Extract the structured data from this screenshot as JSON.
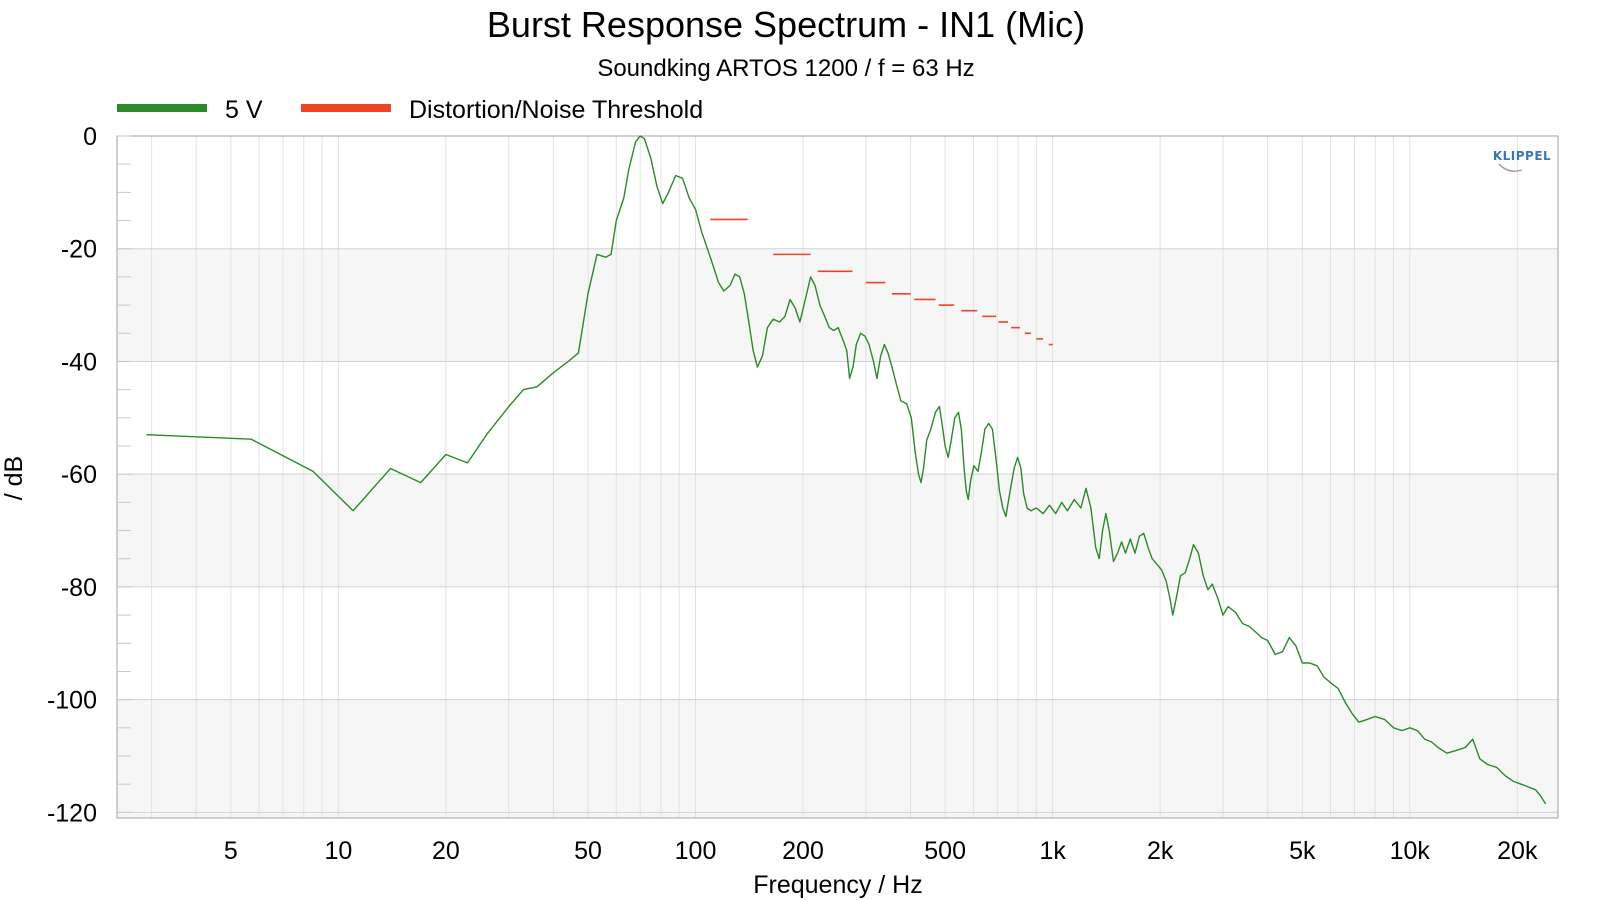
{
  "chart_data": {
    "type": "line",
    "title": "Burst Response Spectrum - IN1 (Mic)",
    "subtitle": "Soundking ARTOS 1200 / f = 63 Hz",
    "xlabel": "Frequency / Hz",
    "ylabel": "/ dB",
    "x_scale": "log",
    "xlim": [
      2.4,
      26000
    ],
    "ylim": [
      -121,
      0
    ],
    "x_tick_values": [
      5,
      10,
      20,
      50,
      100,
      200,
      500,
      1000,
      2000,
      5000,
      10000,
      20000
    ],
    "x_tick_labels": [
      "5",
      "10",
      "20",
      "50",
      "100",
      "200",
      "500",
      "1k",
      "2k",
      "5k",
      "10k",
      "20k"
    ],
    "y_tick_values": [
      0,
      -20,
      -40,
      -60,
      -80,
      -100,
      -120
    ],
    "y_tick_labels": [
      "0",
      "-20",
      "-40",
      "-60",
      "-80",
      "-100",
      "-120"
    ],
    "grid": true,
    "legend_position": "top-left",
    "logo": "KLIPPEL",
    "series": [
      {
        "name": "5 V",
        "color": "#2a8a2a",
        "points": [
          [
            2.9,
            -53
          ],
          [
            5.7,
            -53.8
          ],
          [
            8.5,
            -59.5
          ],
          [
            11,
            -66.5
          ],
          [
            14,
            -59
          ],
          [
            17,
            -61.5
          ],
          [
            20,
            -56.5
          ],
          [
            23,
            -58
          ],
          [
            26,
            -53
          ],
          [
            30,
            -48
          ],
          [
            33,
            -45
          ],
          [
            36,
            -44.5
          ],
          [
            40,
            -42
          ],
          [
            44,
            -40
          ],
          [
            47,
            -38.5
          ],
          [
            50,
            -28
          ],
          [
            53,
            -21
          ],
          [
            56,
            -21.5
          ],
          [
            58,
            -21
          ],
          [
            60,
            -15
          ],
          [
            63,
            -11
          ],
          [
            65,
            -6
          ],
          [
            68,
            -1
          ],
          [
            70,
            0
          ],
          [
            72,
            -0.5
          ],
          [
            75,
            -4
          ],
          [
            78,
            -9
          ],
          [
            81,
            -12
          ],
          [
            84,
            -10
          ],
          [
            88,
            -7
          ],
          [
            92,
            -7.5
          ],
          [
            96,
            -11
          ],
          [
            100,
            -13
          ],
          [
            104,
            -17
          ],
          [
            108,
            -20
          ],
          [
            112,
            -23
          ],
          [
            116,
            -26
          ],
          [
            120,
            -27.5
          ],
          [
            125,
            -26.5
          ],
          [
            129,
            -24.5
          ],
          [
            133,
            -25
          ],
          [
            137,
            -28
          ],
          [
            141,
            -33
          ],
          [
            145,
            -38
          ],
          [
            149,
            -41
          ],
          [
            154,
            -39
          ],
          [
            159,
            -34
          ],
          [
            165,
            -32.5
          ],
          [
            172,
            -33
          ],
          [
            178,
            -32
          ],
          [
            184,
            -29
          ],
          [
            190,
            -30.5
          ],
          [
            196,
            -33
          ],
          [
            203,
            -29
          ],
          [
            210,
            -25
          ],
          [
            216,
            -26.5
          ],
          [
            223,
            -30
          ],
          [
            230,
            -32
          ],
          [
            237,
            -34
          ],
          [
            244,
            -34.5
          ],
          [
            251,
            -34
          ],
          [
            258,
            -36
          ],
          [
            265,
            -38
          ],
          [
            270,
            -43
          ],
          [
            276,
            -41
          ],
          [
            282,
            -37
          ],
          [
            290,
            -35
          ],
          [
            298,
            -35.5
          ],
          [
            306,
            -37
          ],
          [
            315,
            -40
          ],
          [
            322,
            -43
          ],
          [
            330,
            -39
          ],
          [
            338,
            -37
          ],
          [
            346,
            -38.5
          ],
          [
            355,
            -41
          ],
          [
            365,
            -44
          ],
          [
            376,
            -47
          ],
          [
            390,
            -47.5
          ],
          [
            402,
            -50
          ],
          [
            412,
            -56
          ],
          [
            421,
            -60
          ],
          [
            428,
            -61.5
          ],
          [
            435,
            -59
          ],
          [
            444,
            -54
          ],
          [
            456,
            -52
          ],
          [
            470,
            -49
          ],
          [
            482,
            -48
          ],
          [
            490,
            -51
          ],
          [
            500,
            -55
          ],
          [
            510,
            -57
          ],
          [
            520,
            -54
          ],
          [
            532,
            -50
          ],
          [
            545,
            -49
          ],
          [
            555,
            -52
          ],
          [
            565,
            -59
          ],
          [
            573,
            -63
          ],
          [
            580,
            -64.5
          ],
          [
            590,
            -61
          ],
          [
            602,
            -58.5
          ],
          [
            618,
            -59.5
          ],
          [
            632,
            -56
          ],
          [
            646,
            -52
          ],
          [
            662,
            -51
          ],
          [
            678,
            -52
          ],
          [
            693,
            -57
          ],
          [
            710,
            -63
          ],
          [
            725,
            -66
          ],
          [
            740,
            -67.5
          ],
          [
            760,
            -63
          ],
          [
            780,
            -59
          ],
          [
            798,
            -57
          ],
          [
            815,
            -59
          ],
          [
            830,
            -63.5
          ],
          [
            848,
            -66
          ],
          [
            870,
            -66.5
          ],
          [
            900,
            -66
          ],
          [
            940,
            -67
          ],
          [
            980,
            -65.5
          ],
          [
            1020,
            -67
          ],
          [
            1060,
            -65
          ],
          [
            1100,
            -66.5
          ],
          [
            1150,
            -64.5
          ],
          [
            1200,
            -66
          ],
          [
            1240,
            -62.5
          ],
          [
            1280,
            -66
          ],
          [
            1320,
            -73
          ],
          [
            1350,
            -75
          ],
          [
            1380,
            -70
          ],
          [
            1410,
            -67
          ],
          [
            1440,
            -70
          ],
          [
            1480,
            -75.5
          ],
          [
            1520,
            -74
          ],
          [
            1560,
            -72
          ],
          [
            1600,
            -74
          ],
          [
            1650,
            -71.5
          ],
          [
            1700,
            -74
          ],
          [
            1750,
            -71
          ],
          [
            1800,
            -70.5
          ],
          [
            1850,
            -73
          ],
          [
            1900,
            -75
          ],
          [
            1960,
            -76
          ],
          [
            2020,
            -77
          ],
          [
            2080,
            -79
          ],
          [
            2130,
            -82
          ],
          [
            2170,
            -85
          ],
          [
            2220,
            -82
          ],
          [
            2280,
            -78
          ],
          [
            2350,
            -77.5
          ],
          [
            2420,
            -75
          ],
          [
            2480,
            -72.5
          ],
          [
            2560,
            -74
          ],
          [
            2640,
            -78
          ],
          [
            2720,
            -80.5
          ],
          [
            2800,
            -79.5
          ],
          [
            2900,
            -82
          ],
          [
            3000,
            -85
          ],
          [
            3100,
            -83.5
          ],
          [
            3250,
            -84.5
          ],
          [
            3400,
            -86.5
          ],
          [
            3550,
            -87
          ],
          [
            3700,
            -88
          ],
          [
            3850,
            -89
          ],
          [
            4000,
            -89.5
          ],
          [
            4200,
            -92
          ],
          [
            4400,
            -91.5
          ],
          [
            4600,
            -89
          ],
          [
            4800,
            -90.5
          ],
          [
            5000,
            -93.5
          ],
          [
            5250,
            -93.5
          ],
          [
            5500,
            -94
          ],
          [
            5750,
            -96
          ],
          [
            6000,
            -97
          ],
          [
            6300,
            -98
          ],
          [
            6600,
            -100.5
          ],
          [
            6900,
            -102.5
          ],
          [
            7200,
            -104
          ],
          [
            7600,
            -103.5
          ],
          [
            8000,
            -103
          ],
          [
            8500,
            -103.5
          ],
          [
            9000,
            -105
          ],
          [
            9500,
            -105.5
          ],
          [
            10000,
            -105
          ],
          [
            10500,
            -105.5
          ],
          [
            11000,
            -107
          ],
          [
            11500,
            -107.5
          ],
          [
            12000,
            -108.5
          ],
          [
            12700,
            -109.5
          ],
          [
            13500,
            -109
          ],
          [
            14300,
            -108.5
          ],
          [
            15000,
            -107
          ],
          [
            15700,
            -110.5
          ],
          [
            16500,
            -111.5
          ],
          [
            17500,
            -112
          ],
          [
            18500,
            -113.5
          ],
          [
            19500,
            -114.5
          ],
          [
            20500,
            -115
          ],
          [
            21500,
            -115.5
          ],
          [
            22500,
            -116
          ],
          [
            23200,
            -117
          ],
          [
            24000,
            -118.5
          ]
        ]
      },
      {
        "name": "Distortion/Noise Threshold",
        "color": "#ee4422",
        "segments": [
          [
            110,
            140,
            -14.8
          ],
          [
            165,
            210,
            -21
          ],
          [
            220,
            275,
            -24
          ],
          [
            300,
            340,
            -26
          ],
          [
            355,
            400,
            -28
          ],
          [
            410,
            470,
            -29
          ],
          [
            480,
            530,
            -30
          ],
          [
            555,
            615,
            -31
          ],
          [
            635,
            695,
            -32
          ],
          [
            705,
            750,
            -33
          ],
          [
            765,
            810,
            -34
          ],
          [
            835,
            870,
            -35
          ],
          [
            900,
            940,
            -36
          ],
          [
            975,
            1000,
            -37
          ]
        ]
      }
    ]
  }
}
